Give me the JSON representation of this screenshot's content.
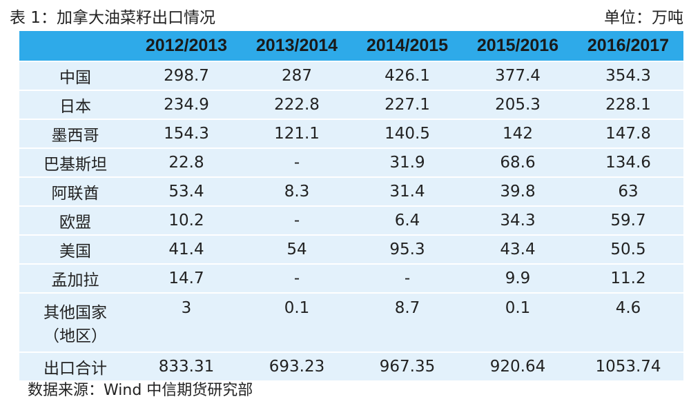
{
  "header": {
    "title": "表 1：加拿大油菜籽出口情况",
    "unit": "单位：万吨"
  },
  "table": {
    "columns": [
      "2012/2013",
      "2013/2014",
      "2014/2015",
      "2015/2016",
      "2016/2017"
    ],
    "rows": [
      {
        "label": [
          "中国"
        ],
        "cells": [
          "298.7",
          "287",
          "426.1",
          "377.4",
          "354.3"
        ]
      },
      {
        "label": [
          "日本"
        ],
        "cells": [
          "234.9",
          "222.8",
          "227.1",
          "205.3",
          "228.1"
        ]
      },
      {
        "label": [
          "墨西哥"
        ],
        "cells": [
          "154.3",
          "121.1",
          "140.5",
          "142",
          "147.8"
        ]
      },
      {
        "label": [
          "巴基斯坦"
        ],
        "cells": [
          "22.8",
          "-",
          "31.9",
          "68.6",
          "134.6"
        ]
      },
      {
        "label": [
          "阿联酋"
        ],
        "cells": [
          "53.4",
          "8.3",
          "31.4",
          "39.8",
          "63"
        ]
      },
      {
        "label": [
          "欧盟"
        ],
        "cells": [
          "10.2",
          "-",
          "6.4",
          "34.3",
          "59.7"
        ]
      },
      {
        "label": [
          "美国"
        ],
        "cells": [
          "41.4",
          "54",
          "95.3",
          "43.4",
          "50.5"
        ]
      },
      {
        "label": [
          "孟加拉"
        ],
        "cells": [
          "14.7",
          "-",
          "-",
          "9.9",
          "11.2"
        ]
      },
      {
        "label": [
          "其他国家",
          "（地区）"
        ],
        "cells": [
          "3",
          "0.1",
          "8.7",
          "0.1",
          "4.6"
        ]
      },
      {
        "label": [
          "出口合计"
        ],
        "cells": [
          "833.31",
          "693.23",
          "967.35",
          "920.64",
          "1053.74"
        ]
      }
    ]
  },
  "footer": {
    "source": "数据来源：Wind 中信期货研究部"
  }
}
